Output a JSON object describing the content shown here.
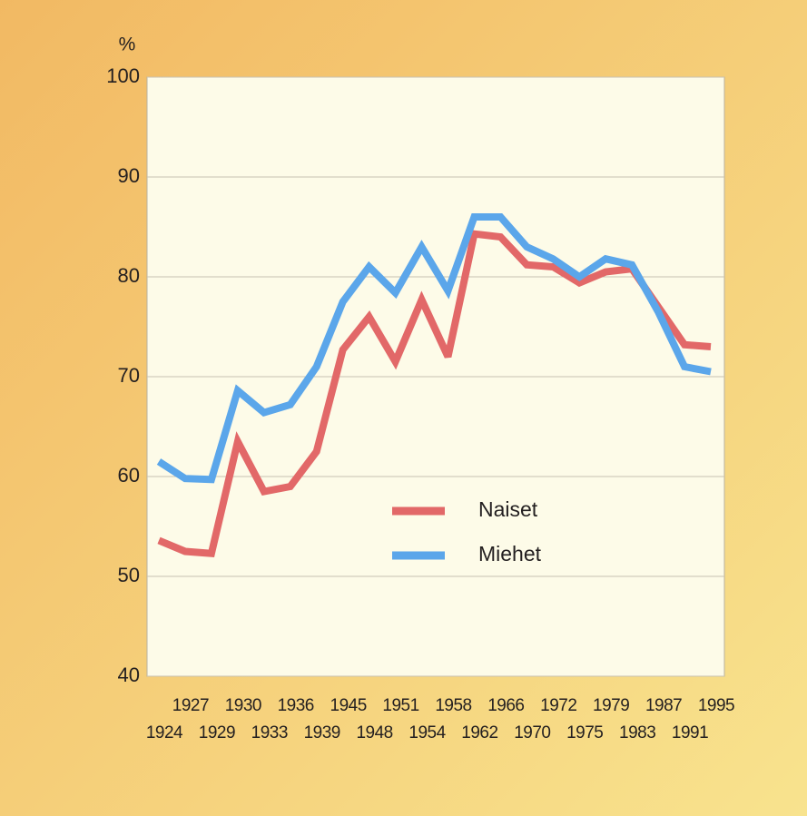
{
  "chart_data": {
    "type": "line",
    "y_label": "%",
    "categories": [
      "1924",
      "1927",
      "1929",
      "1930",
      "1933",
      "1936",
      "1939",
      "1945",
      "1948",
      "1951",
      "1954",
      "1958",
      "1962",
      "1966",
      "1970",
      "1972",
      "1975",
      "1979",
      "1983",
      "1987",
      "1991",
      "1995"
    ],
    "series": [
      {
        "name": "Naiset",
        "color": "#e26868",
        "values": [
          53.6,
          52.5,
          52.3,
          63.5,
          58.5,
          59,
          62.5,
          72.7,
          76,
          71.5,
          77.7,
          72,
          84.3,
          84,
          81.2,
          81,
          79.4,
          80.5,
          80.8,
          77,
          73.2,
          73
        ]
      },
      {
        "name": "Miehet",
        "color": "#5ba6ea",
        "values": [
          61.5,
          59.8,
          59.7,
          68.6,
          66.4,
          67.2,
          71,
          77.5,
          81,
          78.4,
          83,
          78.6,
          86,
          86,
          83,
          81.8,
          80,
          81.8,
          81.2,
          76.5,
          71,
          70.5
        ]
      }
    ],
    "ylim": [
      40,
      100
    ],
    "yticks": [
      40,
      50,
      60,
      70,
      80,
      90,
      100
    ],
    "grid": true
  }
}
